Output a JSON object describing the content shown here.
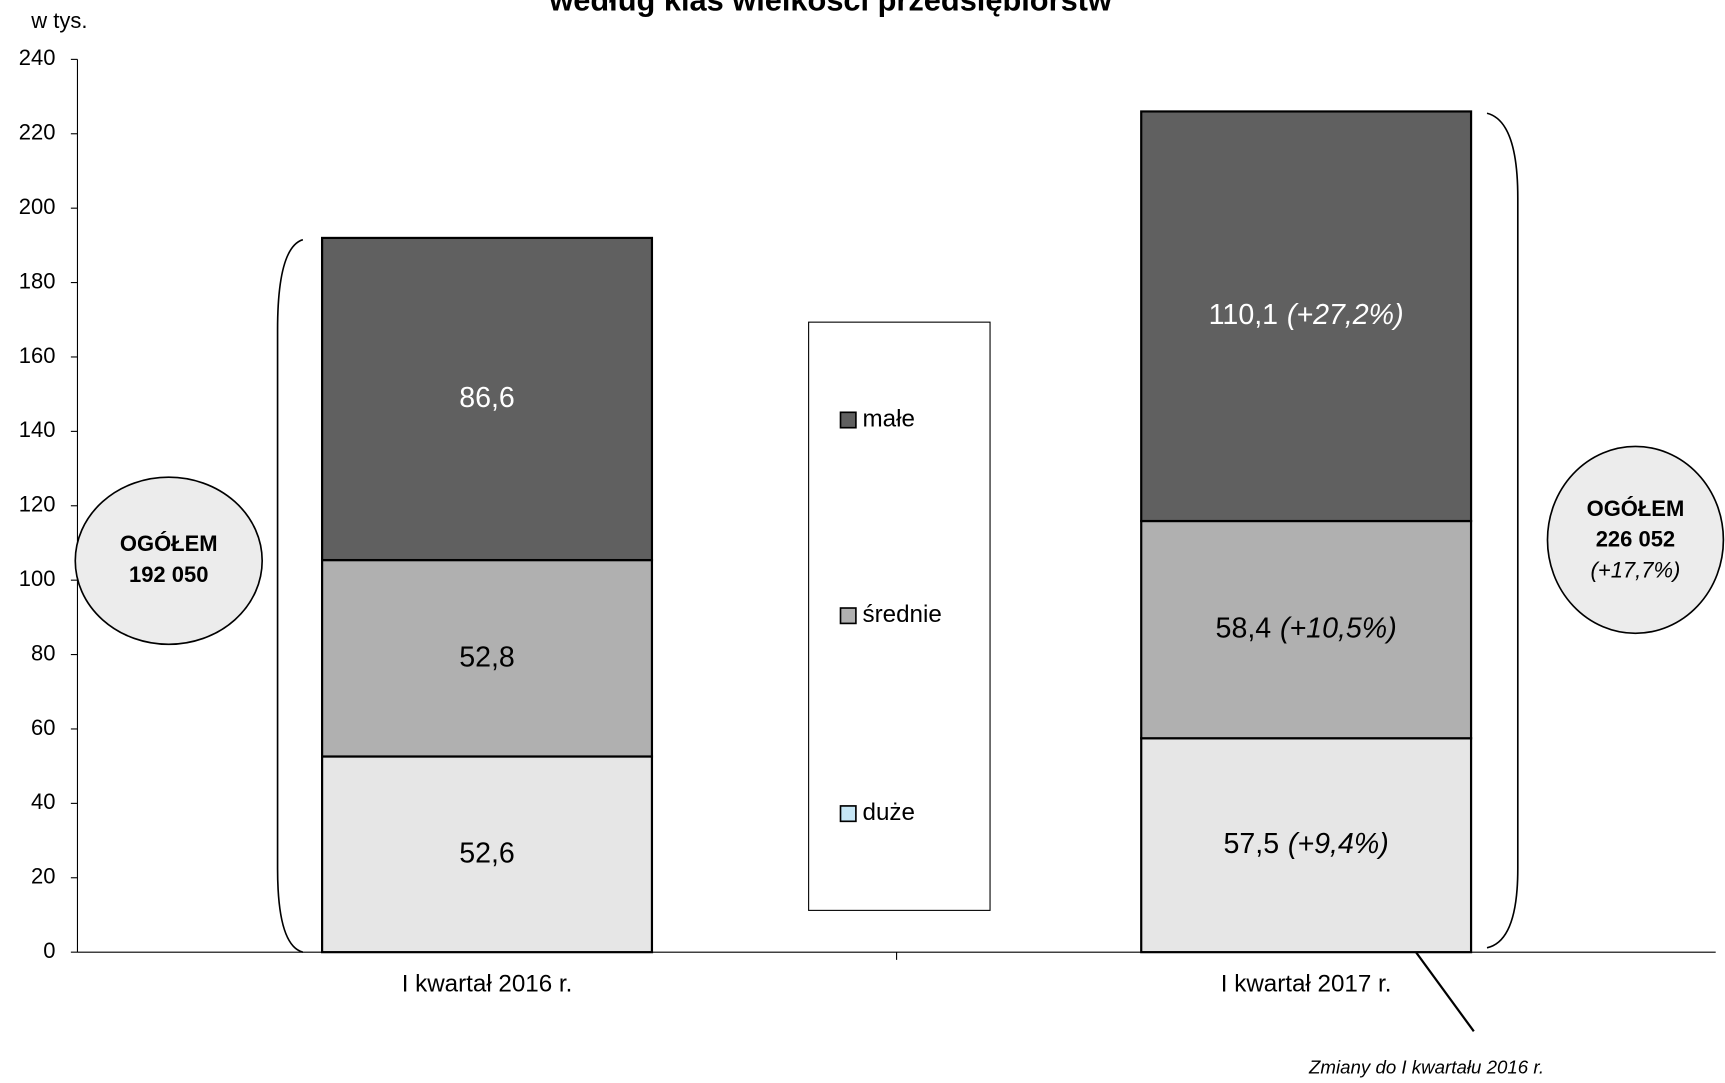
{
  "chart_data": {
    "type": "stacked_bar",
    "title": "według klas wielkości przedsiębiorstw",
    "y_unit": "w tys.",
    "categories": [
      "I kwartał 2016 r.",
      "I kwartał 2017 r."
    ],
    "series": [
      {
        "name": "duże",
        "color": "#e6e6e6",
        "legend_color": "#c6e6f5",
        "values": [
          52.6,
          57.5
        ],
        "value_labels": [
          "52,6",
          "57,5"
        ],
        "change_labels": [
          null,
          "(+9,4%)"
        ]
      },
      {
        "name": "średnie",
        "color": "#b0b0b0",
        "legend_color": "#b0b0b0",
        "values": [
          52.8,
          58.4
        ],
        "value_labels": [
          "52,8",
          "58,4"
        ],
        "change_labels": [
          null,
          "(+10,5%)"
        ]
      },
      {
        "name": "małe",
        "color": "#606060",
        "legend_color": "#606060",
        "values": [
          86.6,
          110.1
        ],
        "value_labels": [
          "86,6",
          "110,1"
        ],
        "change_labels": [
          null,
          "(+27,2%)"
        ]
      }
    ],
    "totals": [
      {
        "label": "OGÓŁEM",
        "value": "192 050",
        "change": null
      },
      {
        "label": "OGÓŁEM",
        "value": "226 052",
        "change": "(+17,7%)"
      }
    ],
    "annotation": "Zmiany do I kwartału 2016 r.",
    "ylim": [
      0,
      240
    ],
    "yticks": [
      0,
      20,
      40,
      60,
      80,
      100,
      120,
      140,
      160,
      180,
      200,
      220,
      240
    ]
  }
}
